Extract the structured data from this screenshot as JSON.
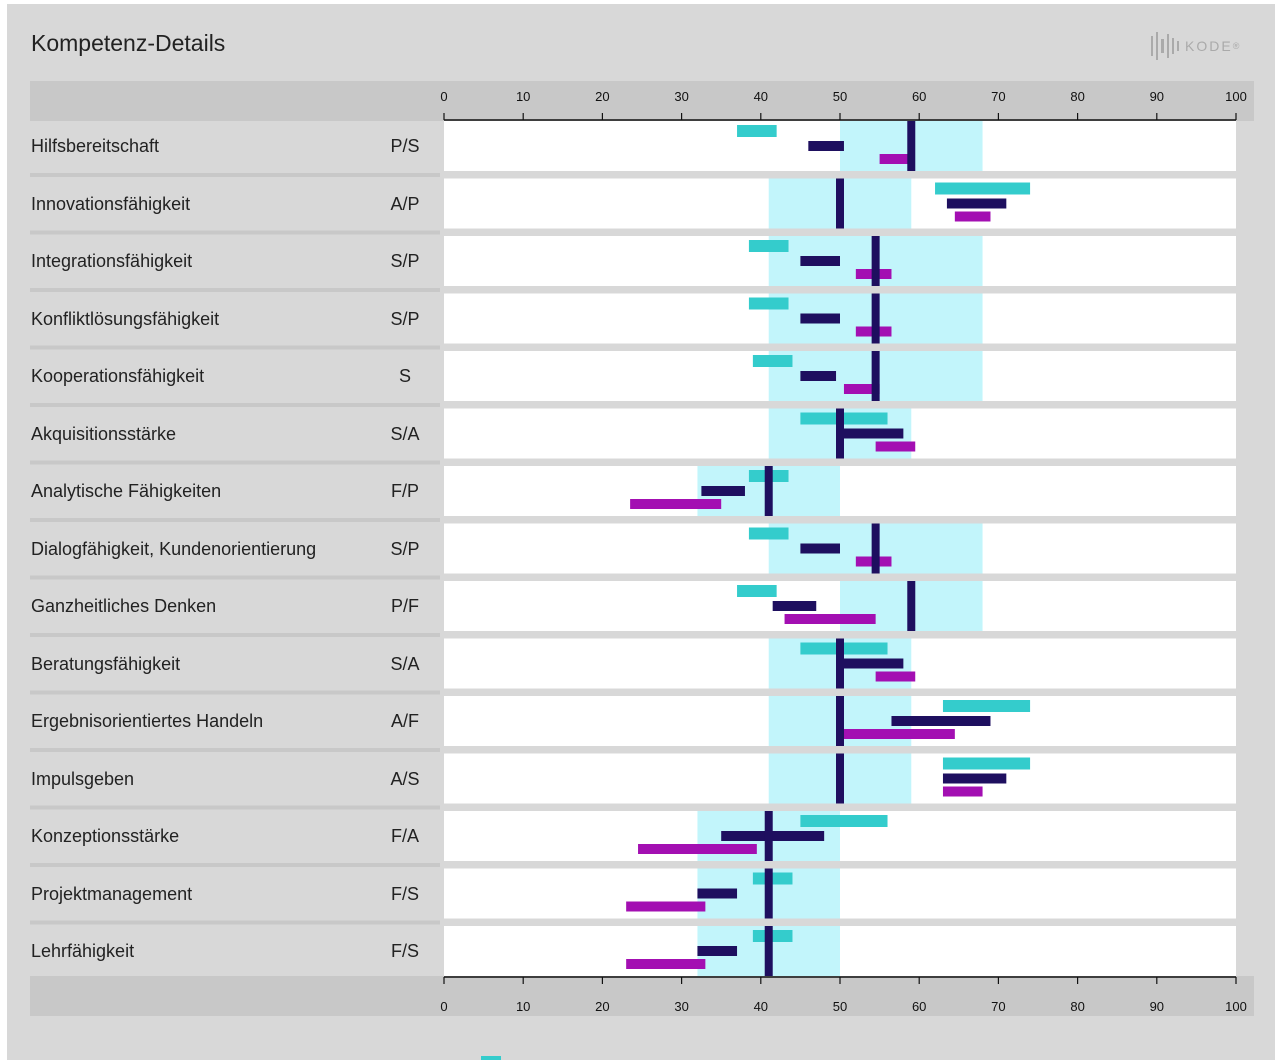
{
  "title": "Kompetenz-Details",
  "logo": {
    "text": "KODE",
    "mark": "®"
  },
  "colors": {
    "panel": "#d8d8d8",
    "axis_band": "#c8c8c8",
    "plot_bg": "#ffffff",
    "target_band": "#c2f5fb",
    "series_1": "#34cccc",
    "series_2": "#1e0f5f",
    "series_3": "#a30fb2",
    "marker": "#1e0f5f"
  },
  "chart_data": {
    "type": "bar",
    "orientation": "horizontal-range",
    "xlim": [
      0,
      100
    ],
    "xticks": [
      0,
      10,
      20,
      30,
      40,
      50,
      60,
      70,
      80,
      90,
      100
    ],
    "grid": false,
    "rows": [
      {
        "label": "Hilfsbereitschaft",
        "code": "P/S",
        "band": [
          50,
          68
        ],
        "marker": 59,
        "s1": [
          37,
          42
        ],
        "s2": [
          46,
          50.5
        ],
        "s3": [
          55,
          59
        ]
      },
      {
        "label": "Innovationsfähigkeit",
        "code": "A/P",
        "band": [
          41,
          59
        ],
        "marker": 50,
        "s1": [
          62,
          74
        ],
        "s2": [
          63.5,
          71
        ],
        "s3": [
          64.5,
          69
        ]
      },
      {
        "label": "Integrationsfähigkeit",
        "code": "S/P",
        "band": [
          41,
          68
        ],
        "marker": 54.5,
        "s1": [
          38.5,
          43.5
        ],
        "s2": [
          45,
          50
        ],
        "s3": [
          52,
          56.5
        ]
      },
      {
        "label": "Konfliktlösungsfähigkeit",
        "code": "S/P",
        "band": [
          41,
          68
        ],
        "marker": 54.5,
        "s1": [
          38.5,
          43.5
        ],
        "s2": [
          45,
          50
        ],
        "s3": [
          52,
          56.5
        ]
      },
      {
        "label": "Kooperationsfähigkeit",
        "code": "S",
        "band": [
          41,
          68
        ],
        "marker": 54.5,
        "s1": [
          39,
          44
        ],
        "s2": [
          45,
          49.5
        ],
        "s3": [
          50.5,
          55
        ]
      },
      {
        "label": "Akquisitionsstärke",
        "code": "S/A",
        "band": [
          41,
          59
        ],
        "marker": 50,
        "s1": [
          45,
          56
        ],
        "s2": [
          50,
          58
        ],
        "s3": [
          54.5,
          59.5
        ]
      },
      {
        "label": "Analytische Fähigkeiten",
        "code": "F/P",
        "band": [
          32,
          50
        ],
        "marker": 41,
        "s1": [
          38.5,
          43.5
        ],
        "s2": [
          32.5,
          38
        ],
        "s3": [
          23.5,
          35
        ]
      },
      {
        "label": "Dialogfähigkeit, Kundenorientierung",
        "code": "S/P",
        "band": [
          41,
          68
        ],
        "marker": 54.5,
        "s1": [
          38.5,
          43.5
        ],
        "s2": [
          45,
          50
        ],
        "s3": [
          52,
          56.5
        ]
      },
      {
        "label": "Ganzheitliches Denken",
        "code": "P/F",
        "band": [
          50,
          68
        ],
        "marker": 59,
        "s1": [
          37,
          42
        ],
        "s2": [
          41.5,
          47
        ],
        "s3": [
          43,
          54.5
        ]
      },
      {
        "label": "Beratungsfähigkeit",
        "code": "S/A",
        "band": [
          41,
          59
        ],
        "marker": 50,
        "s1": [
          45,
          56
        ],
        "s2": [
          50,
          58
        ],
        "s3": [
          54.5,
          59.5
        ]
      },
      {
        "label": "Ergebnisorientiertes Handeln",
        "code": "A/F",
        "band": [
          41,
          59
        ],
        "marker": 50,
        "s1": [
          63,
          74
        ],
        "s2": [
          56.5,
          69
        ],
        "s3": [
          49.5,
          64.5
        ]
      },
      {
        "label": "Impulsgeben",
        "code": "A/S",
        "band": [
          41,
          59
        ],
        "marker": 50,
        "s1": [
          63,
          74
        ],
        "s2": [
          63,
          71
        ],
        "s3": [
          63,
          68
        ]
      },
      {
        "label": "Konzeptionsstärke",
        "code": "F/A",
        "band": [
          32,
          50
        ],
        "marker": 41,
        "s1": [
          45,
          56
        ],
        "s2": [
          35,
          48
        ],
        "s3": [
          24.5,
          39.5
        ]
      },
      {
        "label": "Projektmanagement",
        "code": "F/S",
        "band": [
          32,
          50
        ],
        "marker": 41,
        "s1": [
          39,
          44
        ],
        "s2": [
          32,
          37
        ],
        "s3": [
          23,
          33
        ]
      },
      {
        "label": "Lehrfähigkeit",
        "code": "F/S",
        "band": [
          32,
          50
        ],
        "marker": 41,
        "s1": [
          39,
          44
        ],
        "s2": [
          32,
          37
        ],
        "s3": [
          23,
          33
        ]
      }
    ]
  }
}
